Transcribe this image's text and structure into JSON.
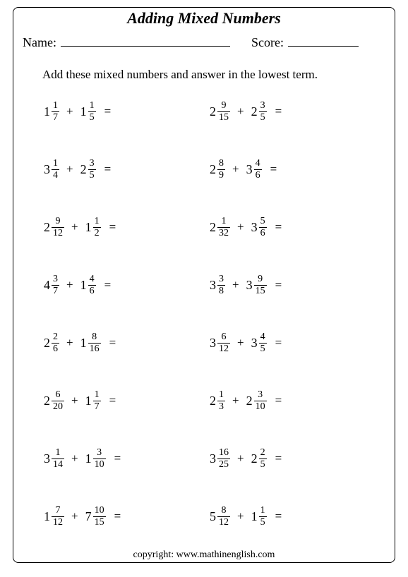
{
  "title": "Adding Mixed Numbers",
  "name_label": "Name:",
  "score_label": "Score:",
  "instruction": "Add these mixed numbers and answer in the lowest term.",
  "copyright": "copyright:   www.mathinenglish.com",
  "problems": [
    {
      "a": {
        "w": "1",
        "n": "1",
        "d": "7"
      },
      "b": {
        "w": "1",
        "n": "1",
        "d": "5"
      }
    },
    {
      "a": {
        "w": "2",
        "n": "9",
        "d": "15"
      },
      "b": {
        "w": "2",
        "n": "3",
        "d": "5"
      }
    },
    {
      "a": {
        "w": "3",
        "n": "1",
        "d": "4"
      },
      "b": {
        "w": "2",
        "n": "3",
        "d": "5"
      }
    },
    {
      "a": {
        "w": "2",
        "n": "8",
        "d": "9"
      },
      "b": {
        "w": "3",
        "n": "4",
        "d": "6"
      }
    },
    {
      "a": {
        "w": "2",
        "n": "9",
        "d": "12"
      },
      "b": {
        "w": "1",
        "n": "1",
        "d": "2"
      }
    },
    {
      "a": {
        "w": "2",
        "n": "1",
        "d": "32"
      },
      "b": {
        "w": "3",
        "n": "5",
        "d": "6"
      }
    },
    {
      "a": {
        "w": "4",
        "n": "3",
        "d": "7"
      },
      "b": {
        "w": "1",
        "n": "4",
        "d": "6"
      }
    },
    {
      "a": {
        "w": "3",
        "n": "3",
        "d": "8"
      },
      "b": {
        "w": "3",
        "n": "9",
        "d": "15"
      }
    },
    {
      "a": {
        "w": "2",
        "n": "2",
        "d": "6"
      },
      "b": {
        "w": "1",
        "n": "8",
        "d": "16"
      }
    },
    {
      "a": {
        "w": "3",
        "n": "6",
        "d": "12"
      },
      "b": {
        "w": "3",
        "n": "4",
        "d": "5"
      }
    },
    {
      "a": {
        "w": "2",
        "n": "6",
        "d": "20"
      },
      "b": {
        "w": "1",
        "n": "1",
        "d": "7"
      }
    },
    {
      "a": {
        "w": "2",
        "n": "1",
        "d": "3"
      },
      "b": {
        "w": "2",
        "n": "3",
        "d": "10"
      }
    },
    {
      "a": {
        "w": "3",
        "n": "1",
        "d": "14"
      },
      "b": {
        "w": "1",
        "n": "3",
        "d": "10"
      }
    },
    {
      "a": {
        "w": "3",
        "n": "16",
        "d": "25"
      },
      "b": {
        "w": "2",
        "n": "2",
        "d": "5"
      }
    },
    {
      "a": {
        "w": "1",
        "n": "7",
        "d": "12"
      },
      "b": {
        "w": "7",
        "n": "10",
        "d": "15"
      }
    },
    {
      "a": {
        "w": "5",
        "n": "8",
        "d": "12"
      },
      "b": {
        "w": "1",
        "n": "1",
        "d": "5"
      }
    }
  ]
}
